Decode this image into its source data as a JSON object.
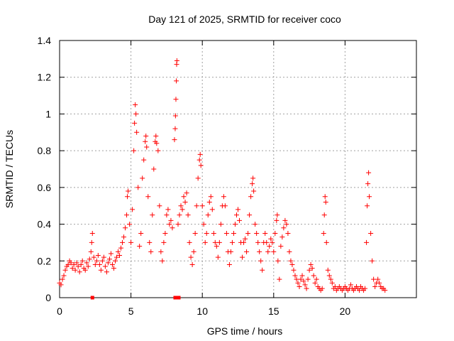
{
  "chart_data": {
    "type": "scatter",
    "title": "Day 121 of 2025, SRMTID for receiver coco",
    "xlabel": "GPS time / hours",
    "ylabel": "SRMTID / TECUs",
    "xlim": [
      0,
      25
    ],
    "ylim": [
      0,
      1.4
    ],
    "xticks": [
      0,
      5,
      10,
      15,
      20
    ],
    "xtick_labels": [
      "0",
      "5",
      "10",
      "15",
      "20"
    ],
    "yticks": [
      0,
      0.2,
      0.4,
      0.6,
      0.8,
      1.0,
      1.2,
      1.4
    ],
    "ytick_labels": [
      "0",
      "0.2",
      "0.4",
      "0.6",
      "0.8",
      "1",
      "1.2",
      "1.4"
    ],
    "grid": true,
    "marker": "+",
    "series": [
      {
        "name": "SRMTID",
        "color": "#ff0000",
        "points": [
          [
            0.0,
            0.08
          ],
          [
            0.1,
            0.07
          ],
          [
            0.2,
            0.1
          ],
          [
            0.3,
            0.12
          ],
          [
            0.4,
            0.15
          ],
          [
            0.5,
            0.17
          ],
          [
            0.6,
            0.18
          ],
          [
            0.7,
            0.2
          ],
          [
            0.8,
            0.19
          ],
          [
            0.9,
            0.16
          ],
          [
            1.0,
            0.18
          ],
          [
            1.1,
            0.15
          ],
          [
            1.2,
            0.19
          ],
          [
            1.3,
            0.17
          ],
          [
            1.4,
            0.14
          ],
          [
            1.5,
            0.18
          ],
          [
            1.6,
            0.2
          ],
          [
            1.7,
            0.16
          ],
          [
            1.8,
            0.15
          ],
          [
            1.9,
            0.19
          ],
          [
            2.0,
            0.17
          ],
          [
            2.1,
            0.21
          ],
          [
            2.2,
            0.25
          ],
          [
            2.25,
            0.3
          ],
          [
            2.3,
            0.35
          ],
          [
            2.4,
            0.22
          ],
          [
            2.5,
            0.18
          ],
          [
            2.6,
            0.2
          ],
          [
            2.7,
            0.23
          ],
          [
            2.8,
            0.18
          ],
          [
            2.9,
            0.15
          ],
          [
            3.0,
            0.2
          ],
          [
            3.1,
            0.22
          ],
          [
            3.2,
            0.17
          ],
          [
            3.3,
            0.14
          ],
          [
            3.4,
            0.19
          ],
          [
            3.5,
            0.21
          ],
          [
            3.6,
            0.24
          ],
          [
            3.7,
            0.18
          ],
          [
            3.8,
            0.16
          ],
          [
            3.9,
            0.2
          ],
          [
            4.0,
            0.22
          ],
          [
            4.1,
            0.25
          ],
          [
            4.2,
            0.23
          ],
          [
            4.3,
            0.27
          ],
          [
            4.4,
            0.3
          ],
          [
            4.5,
            0.33
          ],
          [
            4.6,
            0.38
          ],
          [
            4.7,
            0.45
          ],
          [
            4.75,
            0.55
          ],
          [
            4.8,
            0.58
          ],
          [
            4.9,
            0.4
          ],
          [
            5.0,
            0.3
          ],
          [
            5.1,
            0.48
          ],
          [
            5.2,
            0.8
          ],
          [
            5.25,
            0.95
          ],
          [
            5.3,
            1.05
          ],
          [
            5.35,
            1.0
          ],
          [
            5.4,
            0.9
          ],
          [
            5.5,
            0.6
          ],
          [
            5.6,
            0.28
          ],
          [
            5.7,
            0.35
          ],
          [
            5.8,
            0.65
          ],
          [
            5.9,
            0.75
          ],
          [
            6.0,
            0.85
          ],
          [
            6.05,
            0.88
          ],
          [
            6.1,
            0.82
          ],
          [
            6.2,
            0.55
          ],
          [
            6.3,
            0.3
          ],
          [
            6.4,
            0.25
          ],
          [
            6.5,
            0.45
          ],
          [
            6.6,
            0.7
          ],
          [
            6.7,
            0.85
          ],
          [
            6.75,
            0.88
          ],
          [
            6.8,
            0.84
          ],
          [
            6.9,
            0.8
          ],
          [
            7.0,
            0.5
          ],
          [
            7.1,
            0.25
          ],
          [
            7.2,
            0.2
          ],
          [
            7.3,
            0.3
          ],
          [
            7.4,
            0.35
          ],
          [
            7.5,
            0.45
          ],
          [
            7.6,
            0.48
          ],
          [
            7.7,
            0.4
          ],
          [
            7.8,
            0.42
          ],
          [
            7.9,
            0.38
          ],
          [
            8.05,
            0.86
          ],
          [
            8.1,
            0.92
          ],
          [
            8.12,
            0.99
          ],
          [
            8.15,
            1.08
          ],
          [
            8.18,
            1.18
          ],
          [
            8.2,
            1.27
          ],
          [
            8.22,
            1.29
          ],
          [
            8.3,
            0.4
          ],
          [
            8.4,
            0.45
          ],
          [
            8.5,
            0.5
          ],
          [
            8.6,
            0.48
          ],
          [
            8.7,
            0.55
          ],
          [
            8.8,
            0.52
          ],
          [
            8.9,
            0.57
          ],
          [
            9.0,
            0.45
          ],
          [
            9.1,
            0.3
          ],
          [
            9.2,
            0.22
          ],
          [
            9.3,
            0.18
          ],
          [
            9.4,
            0.25
          ],
          [
            9.5,
            0.35
          ],
          [
            9.6,
            0.5
          ],
          [
            9.7,
            0.65
          ],
          [
            9.8,
            0.75
          ],
          [
            9.85,
            0.78
          ],
          [
            9.9,
            0.72
          ],
          [
            10.0,
            0.5
          ],
          [
            10.1,
            0.4
          ],
          [
            10.2,
            0.3
          ],
          [
            10.3,
            0.35
          ],
          [
            10.4,
            0.45
          ],
          [
            10.5,
            0.52
          ],
          [
            10.6,
            0.55
          ],
          [
            10.7,
            0.48
          ],
          [
            10.8,
            0.35
          ],
          [
            10.9,
            0.3
          ],
          [
            11.0,
            0.28
          ],
          [
            11.1,
            0.22
          ],
          [
            11.2,
            0.3
          ],
          [
            11.3,
            0.4
          ],
          [
            11.4,
            0.5
          ],
          [
            11.5,
            0.55
          ],
          [
            11.6,
            0.5
          ],
          [
            11.7,
            0.35
          ],
          [
            11.8,
            0.25
          ],
          [
            11.9,
            0.18
          ],
          [
            12.0,
            0.25
          ],
          [
            12.1,
            0.3
          ],
          [
            12.2,
            0.35
          ],
          [
            12.3,
            0.4
          ],
          [
            12.4,
            0.45
          ],
          [
            12.5,
            0.48
          ],
          [
            12.6,
            0.42
          ],
          [
            12.7,
            0.3
          ],
          [
            12.8,
            0.22
          ],
          [
            12.9,
            0.3
          ],
          [
            13.0,
            0.32
          ],
          [
            13.1,
            0.25
          ],
          [
            13.2,
            0.35
          ],
          [
            13.3,
            0.45
          ],
          [
            13.4,
            0.55
          ],
          [
            13.5,
            0.62
          ],
          [
            13.55,
            0.65
          ],
          [
            13.6,
            0.58
          ],
          [
            13.7,
            0.4
          ],
          [
            13.8,
            0.35
          ],
          [
            13.9,
            0.3
          ],
          [
            14.0,
            0.25
          ],
          [
            14.1,
            0.2
          ],
          [
            14.2,
            0.15
          ],
          [
            14.3,
            0.3
          ],
          [
            14.4,
            0.35
          ],
          [
            14.5,
            0.3
          ],
          [
            14.6,
            0.25
          ],
          [
            14.7,
            0.28
          ],
          [
            14.8,
            0.32
          ],
          [
            14.9,
            0.3
          ],
          [
            15.0,
            0.25
          ],
          [
            15.1,
            0.35
          ],
          [
            15.2,
            0.42
          ],
          [
            15.25,
            0.45
          ],
          [
            15.3,
            0.2
          ],
          [
            15.4,
            0.1
          ],
          [
            15.5,
            0.28
          ],
          [
            15.6,
            0.33
          ],
          [
            15.7,
            0.38
          ],
          [
            15.8,
            0.42
          ],
          [
            15.9,
            0.4
          ],
          [
            16.0,
            0.35
          ],
          [
            16.1,
            0.25
          ],
          [
            16.2,
            0.2
          ],
          [
            16.3,
            0.18
          ],
          [
            16.4,
            0.15
          ],
          [
            16.5,
            0.12
          ],
          [
            16.6,
            0.1
          ],
          [
            16.7,
            0.08
          ],
          [
            16.8,
            0.06
          ],
          [
            16.9,
            0.1
          ],
          [
            17.0,
            0.12
          ],
          [
            17.1,
            0.09
          ],
          [
            17.2,
            0.07
          ],
          [
            17.3,
            0.05
          ],
          [
            17.4,
            0.1
          ],
          [
            17.5,
            0.15
          ],
          [
            17.6,
            0.18
          ],
          [
            17.7,
            0.16
          ],
          [
            17.8,
            0.12
          ],
          [
            17.9,
            0.08
          ],
          [
            18.0,
            0.1
          ],
          [
            18.1,
            0.06
          ],
          [
            18.2,
            0.05
          ],
          [
            18.3,
            0.04
          ],
          [
            18.4,
            0.05
          ],
          [
            18.5,
            0.35
          ],
          [
            18.55,
            0.45
          ],
          [
            18.6,
            0.55
          ],
          [
            18.65,
            0.52
          ],
          [
            18.7,
            0.3
          ],
          [
            18.8,
            0.15
          ],
          [
            18.9,
            0.12
          ],
          [
            19.0,
            0.1
          ],
          [
            19.1,
            0.08
          ],
          [
            19.2,
            0.05
          ],
          [
            19.3,
            0.06
          ],
          [
            19.4,
            0.04
          ],
          [
            19.5,
            0.05
          ],
          [
            19.6,
            0.06
          ],
          [
            19.7,
            0.05
          ],
          [
            19.8,
            0.04
          ],
          [
            19.9,
            0.05
          ],
          [
            20.0,
            0.06
          ],
          [
            20.1,
            0.05
          ],
          [
            20.2,
            0.04
          ],
          [
            20.3,
            0.05
          ],
          [
            20.4,
            0.07
          ],
          [
            20.5,
            0.05
          ],
          [
            20.6,
            0.04
          ],
          [
            20.7,
            0.05
          ],
          [
            20.8,
            0.06
          ],
          [
            20.9,
            0.05
          ],
          [
            21.0,
            0.04
          ],
          [
            21.1,
            0.06
          ],
          [
            21.2,
            0.05
          ],
          [
            21.3,
            0.04
          ],
          [
            21.4,
            0.05
          ],
          [
            21.5,
            0.3
          ],
          [
            21.55,
            0.5
          ],
          [
            21.6,
            0.62
          ],
          [
            21.65,
            0.68
          ],
          [
            21.7,
            0.55
          ],
          [
            21.8,
            0.35
          ],
          [
            21.9,
            0.2
          ],
          [
            22.0,
            0.1
          ],
          [
            22.1,
            0.06
          ],
          [
            22.2,
            0.08
          ],
          [
            22.3,
            0.1
          ],
          [
            22.4,
            0.08
          ],
          [
            22.5,
            0.06
          ],
          [
            22.6,
            0.05
          ],
          [
            22.7,
            0.05
          ],
          [
            22.8,
            0.04
          ]
        ]
      },
      {
        "name": "zero-markers",
        "color": "#ff0000",
        "marker": "square",
        "points": [
          [
            2.3,
            0
          ],
          [
            8.1,
            0
          ],
          [
            8.35,
            0
          ]
        ]
      }
    ]
  }
}
